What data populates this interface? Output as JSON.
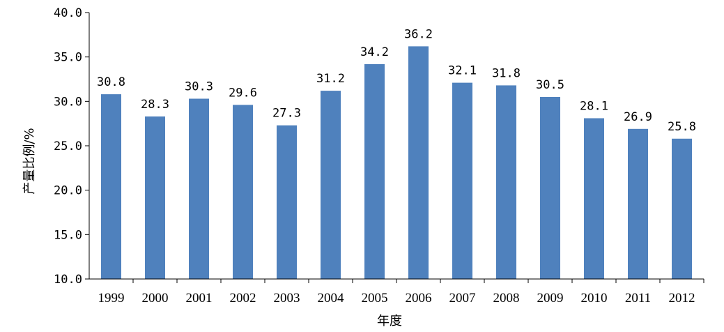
{
  "chart_data": {
    "type": "bar",
    "title": "",
    "xlabel": "年度",
    "ylabel": "产量比例/%",
    "ylim": [
      10.0,
      40.0
    ],
    "ytick_step": 5.0,
    "ytick_labels": [
      "10.0",
      "15.0",
      "20.0",
      "25.0",
      "30.0",
      "35.0",
      "40.0"
    ],
    "grid": false,
    "legend": "none",
    "bar_color": "#4f81bd",
    "categories": [
      "1999",
      "2000",
      "2001",
      "2002",
      "2003",
      "2004",
      "2005",
      "2006",
      "2007",
      "2008",
      "2009",
      "2010",
      "2011",
      "2012"
    ],
    "values": [
      30.8,
      28.3,
      30.3,
      29.6,
      27.3,
      31.2,
      34.2,
      36.2,
      32.1,
      31.8,
      30.5,
      28.1,
      26.9,
      25.8
    ],
    "data_labels": [
      "30.8",
      "28.3",
      "30.3",
      "29.6",
      "27.3",
      "31.2",
      "34.2",
      "36.2",
      "32.1",
      "31.8",
      "30.5",
      "28.1",
      "26.9",
      "25.8"
    ]
  }
}
